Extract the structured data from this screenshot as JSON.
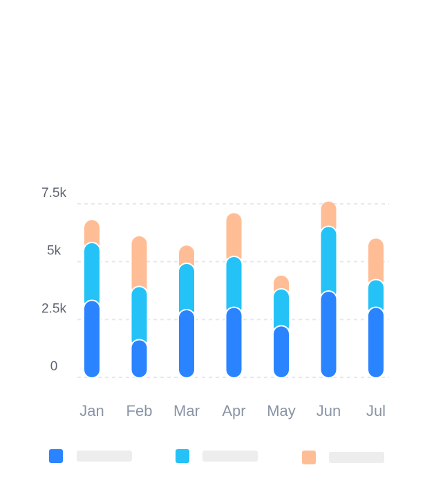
{
  "chart_data": {
    "type": "bar",
    "stacked": true,
    "categories": [
      "Jan",
      "Feb",
      "Mar",
      "Apr",
      "May",
      "Jun",
      "Jul"
    ],
    "series": [
      {
        "color": "#2B84FF",
        "values": [
          3300,
          1600,
          2900,
          3000,
          2200,
          3700,
          3000
        ]
      },
      {
        "color": "#24C2F7",
        "values": [
          2500,
          2300,
          2000,
          2200,
          1600,
          2800,
          1200
        ]
      },
      {
        "color": "#FFBD96",
        "values": [
          1000,
          2200,
          800,
          1900,
          600,
          1100,
          1800
        ]
      }
    ],
    "yticks": [
      {
        "value": 0,
        "label": "0"
      },
      {
        "value": 2500,
        "label": "2.5k"
      },
      {
        "value": 5000,
        "label": "5k"
      },
      {
        "value": 7500,
        "label": "7.5k"
      }
    ],
    "ylim": [
      0,
      7500
    ],
    "grid": true,
    "legend_position": "bottom",
    "legend_labels_visible": false
  }
}
